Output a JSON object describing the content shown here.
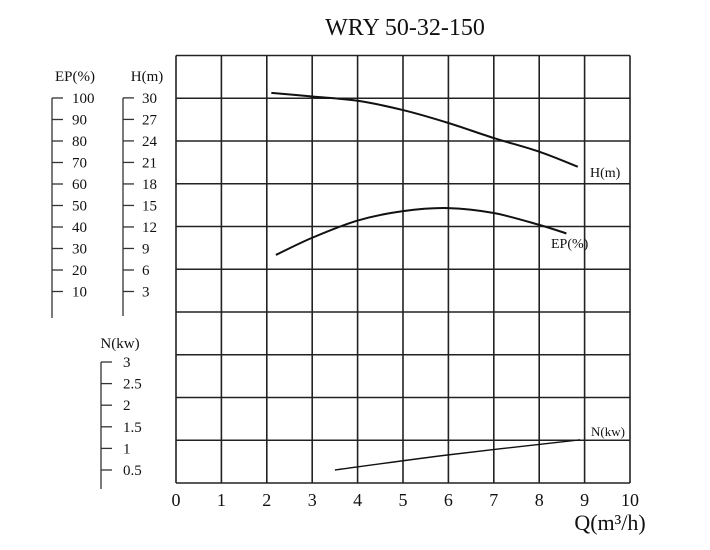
{
  "chart_data": {
    "type": "line",
    "title": "WRY 50-32-150",
    "xlabel": "Q(m³/h)",
    "xlim": [
      0,
      10
    ],
    "x_ticks": [
      0,
      1,
      2,
      3,
      4,
      5,
      6,
      7,
      8,
      9,
      10
    ],
    "grid": true,
    "axes": {
      "ep": {
        "label": "EP(%)",
        "range": [
          0,
          100
        ],
        "ticks": [
          100,
          90,
          80,
          70,
          60,
          50,
          40,
          30,
          20,
          10
        ]
      },
      "h": {
        "label": "H(m)",
        "range": [
          0,
          30
        ],
        "ticks": [
          30,
          27,
          24,
          21,
          18,
          15,
          12,
          9,
          6,
          3
        ]
      },
      "n": {
        "label": "N(kw)",
        "range": [
          0,
          3
        ],
        "ticks": [
          "3",
          "2.5",
          "2",
          "1.5",
          "1",
          "0.5"
        ]
      }
    },
    "series": [
      {
        "name": "H(m)",
        "axis": "h",
        "x": [
          2.1,
          3,
          4,
          5,
          6,
          7,
          8,
          8.85
        ],
        "y": [
          30.7,
          30.2,
          29.6,
          28.3,
          26.5,
          24.4,
          22.5,
          20.4
        ]
      },
      {
        "name": "EP(%)",
        "axis": "ep",
        "x": [
          2.2,
          3,
          4,
          5,
          6,
          7,
          8,
          8.6
        ],
        "y": [
          27,
          35,
          43,
          47.4,
          48.8,
          46.5,
          41,
          37
        ]
      },
      {
        "name": "N(kw)",
        "axis": "n",
        "x": [
          3.5,
          6,
          8.9
        ],
        "y": [
          0.5,
          0.85,
          1.2
        ]
      }
    ]
  }
}
